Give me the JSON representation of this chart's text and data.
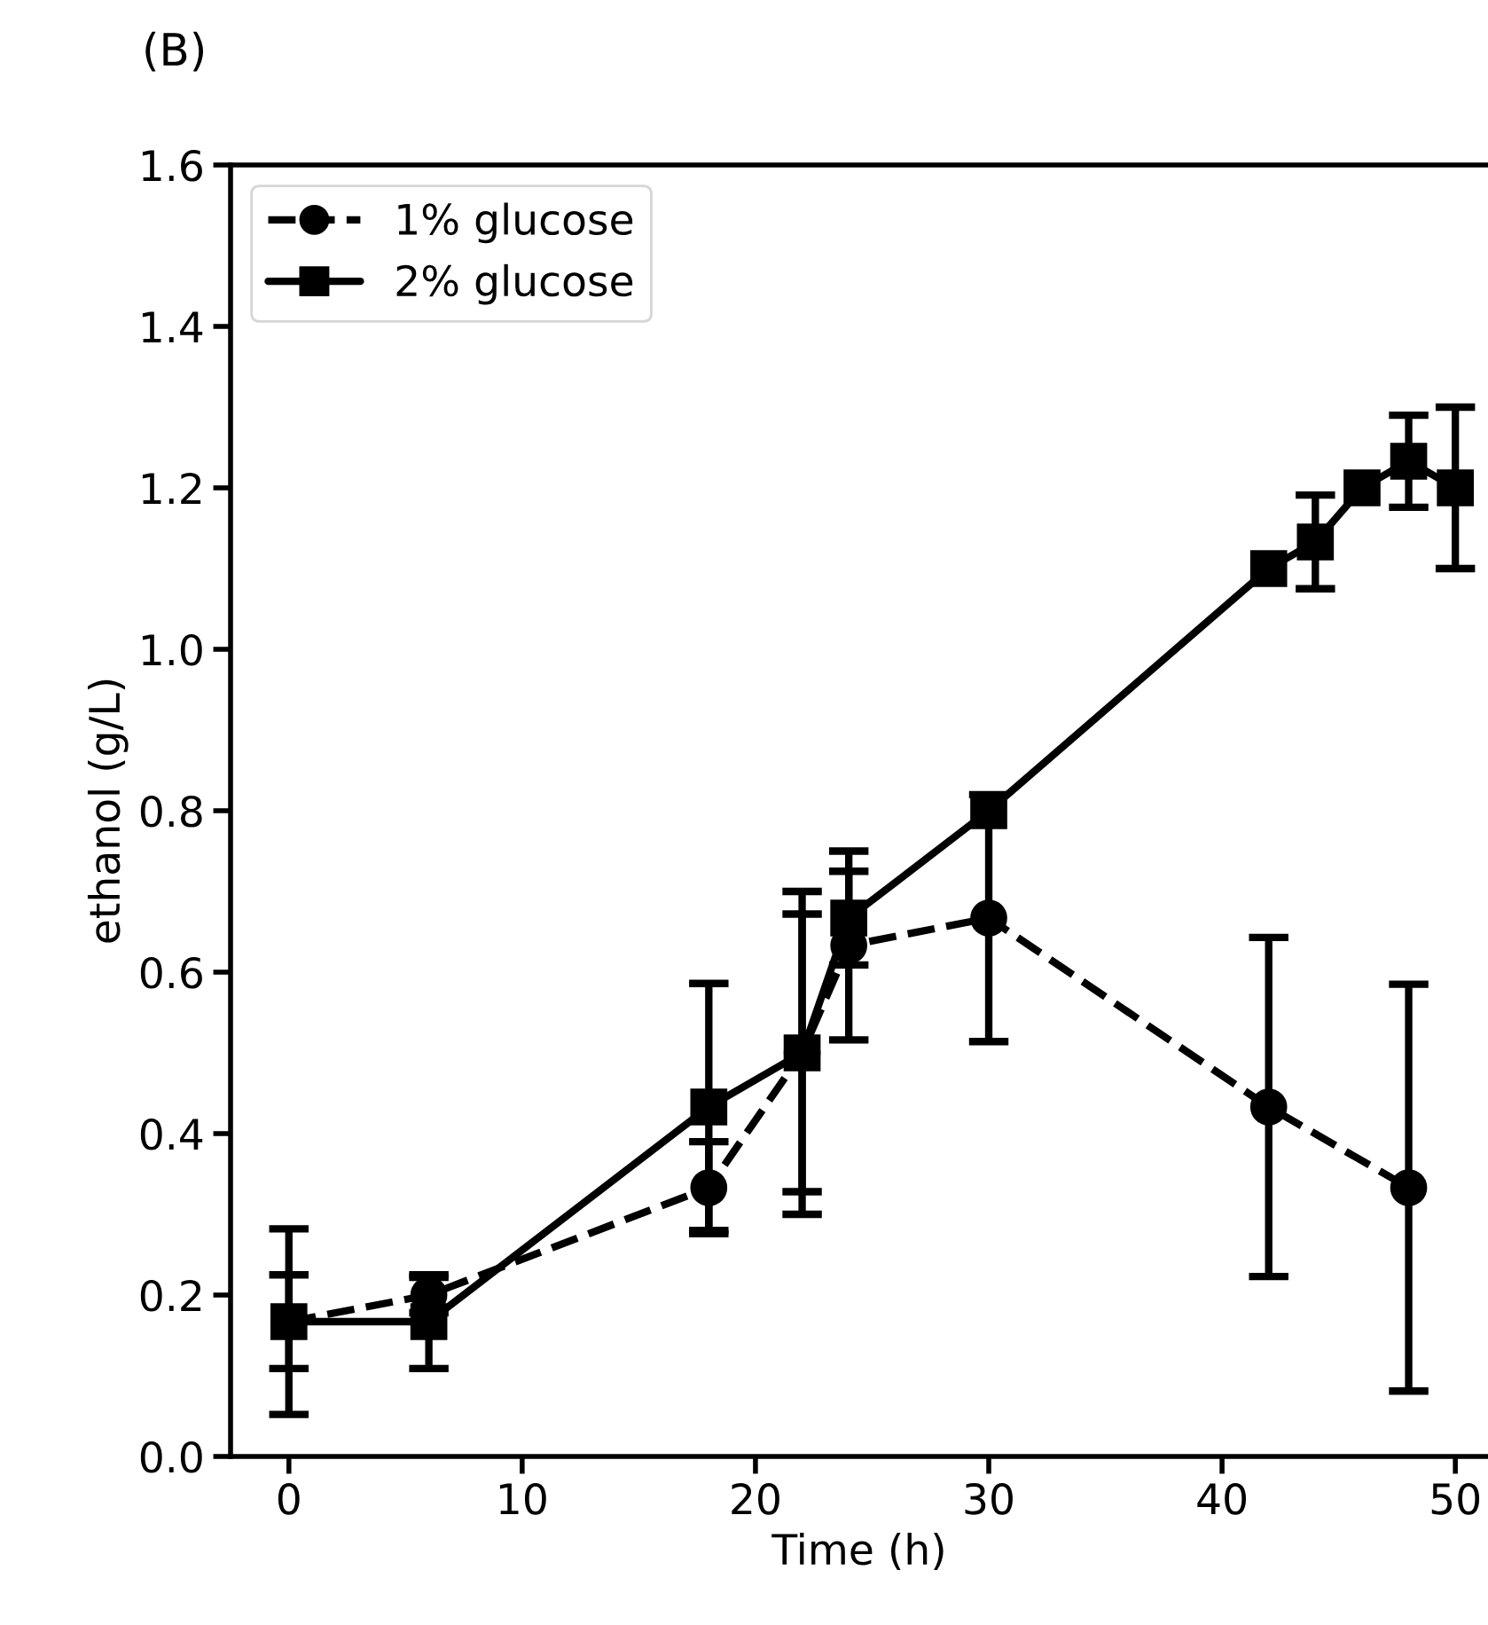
{
  "chart_data": {
    "type": "line",
    "title": "(B)",
    "xlabel": "Time (h)",
    "ylabel": "ethanol (g/L)",
    "xlim": [
      -2.5,
      51.4
    ],
    "xticks": [
      0,
      10,
      20,
      30,
      40,
      50
    ],
    "ylim": [
      0,
      1.6
    ],
    "yticks": [
      {
        "value": 0,
        "label": "0.0"
      },
      0.2,
      0.4,
      0.6,
      0.8,
      {
        "value": 1,
        "label": "1.0"
      },
      1.2,
      1.4,
      1.6
    ],
    "grid": false,
    "legend": "top left",
    "series": [
      {
        "name": "1% glucose",
        "color": "#000000",
        "marker": "circle",
        "line_style": "dashed",
        "x": [
          0,
          6,
          18,
          22,
          24,
          30,
          42,
          48
        ],
        "values": [
          0.167,
          0.2,
          0.333,
          0.5,
          0.633,
          0.667,
          0.433,
          0.333
        ],
        "errors": [
          0.058,
          0.022,
          0.057,
          0.2,
          0.117,
          0.153,
          0.21,
          0.252
        ]
      },
      {
        "name": "2% glucose",
        "color": "#000000",
        "marker": "square",
        "line_style": "solid",
        "x": [
          0,
          6,
          18,
          22,
          24,
          30,
          42,
          44,
          46,
          48,
          50
        ],
        "values": [
          0.167,
          0.167,
          0.433,
          0.5,
          0.667,
          0.8,
          1.1,
          1.133,
          1.2,
          1.233,
          1.2
        ],
        "errors": [
          0.115,
          0.058,
          0.153,
          0.172,
          0.058,
          null,
          null,
          0.058,
          null,
          0.057,
          0.1
        ]
      }
    ]
  }
}
